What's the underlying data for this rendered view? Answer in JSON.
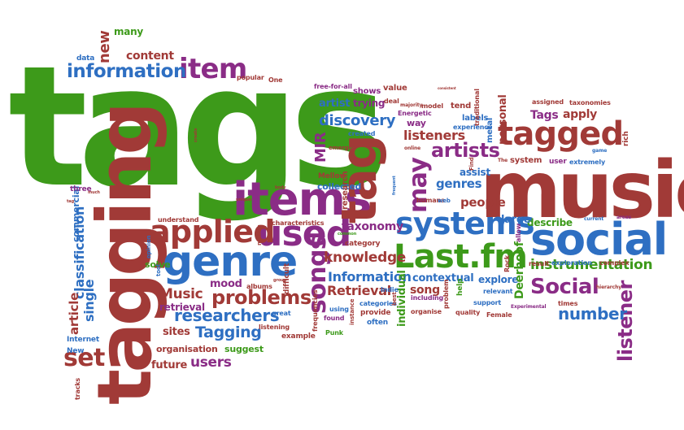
{
  "words": {
    "tags": "tags",
    "music": "music",
    "tagging": "tagging",
    "social": "social",
    "items": "items",
    "tag": "tag",
    "genre": "genre",
    "tagged": "tagged",
    "Lastfm": "Last.fm",
    "systems": "systems",
    "used": "used",
    "applied": "applied",
    "songs": "songs",
    "item": "item",
    "information": "information",
    "may": "may",
    "artists": "artists",
    "Social": "Social",
    "problems": "problems",
    "researchers": "researchers",
    "Tagging": "Tagging",
    "listener": "listener",
    "number": "number",
    "set": "set",
    "users": "users",
    "instrumentation": "instrumentation",
    "Music": "Music",
    "knowledge": "knowledge",
    "Information": "Information",
    "Retrieval": "Retrieval",
    "discovery": "discovery",
    "listeners": "listeners",
    "classification": "classification",
    "single": "single",
    "article": "article",
    "taxonomy": "taxonomy",
    "genres": "genres",
    "people": "people",
    "contextual": "contextual",
    "song": "song",
    "content": "content",
    "new": "new",
    "many": "many",
    "Tags": "Tags",
    "apply": "apply",
    "artist": "artist",
    "trying": "trying",
    "MIR": "MIR",
    "describe": "describe",
    "explore": "explore",
    "Deerhoof": "Deerhoof",
    "mood": "mood",
    "future": "future",
    "suggest": "suggest",
    "organisation": "organisation",
    "sites": "sites",
    "retrieval": "retrieval",
    "individual": "individual",
    "personal": "personal",
    "assist": "assist",
    "labels": "labels",
    "collected": "collected",
    "Mellow": "Mellow",
    "research": "research",
    "solve": "solve",
    "commercial": "commercial",
    "three": "three",
    "Internet": "Internet",
    "New": "New",
    "tracks": "tracks",
    "data": "data",
    "popular": "popular",
    "One": "One",
    "free_for_all": "free-for-all",
    "shows": "shows",
    "value": "value",
    "deal": "deal",
    "way": "way",
    "Energetic": "Energetic",
    "model": "model",
    "tend": "tend",
    "traditional": "traditional",
    "experience": "experience",
    "metal": "metal",
    "system": "system",
    "user": "user",
    "extremely": "extremely",
    "assigned": "assigned",
    "taxonomies": "taxonomies",
    "rich": "rich",
    "large": "large",
    "relevant": "relevant",
    "support": "support",
    "quality": "quality",
    "Female": "Female",
    "times": "times",
    "exploration": "exploration",
    "complex": "complex",
    "result": "result",
    "hierarchy": "hierarchy",
    "Rock": "Rock",
    "allow": "allow",
    "help": "help",
    "problem": "problem",
    "including": "including",
    "organise": "organise",
    "provide": "provide",
    "often": "often",
    "categories": "categories",
    "Indie": "Indie",
    "best": "best",
    "found": "found",
    "using": "using",
    "instance": "instance",
    "frequencies": "frequencies",
    "Punk": "Punk",
    "example": "example",
    "listening": "listening",
    "great": "great",
    "albums": "albums",
    "difficult": "difficult",
    "category": "category",
    "characteristics": "characteristics",
    "million": "million",
    "opinion": "opinion",
    "tool": "tool",
    "understand": "understand",
    "humans": "humans",
    "created": "created",
    "emerges": "emerges",
    "web": "web",
    "Experimental": "Experimental",
    "current": "current",
    "areas": "areas",
    "game": "game",
    "Find": "Find",
    "The": "The",
    "majority": "majority",
    "online": "online",
    "frequent": "frequent",
    "common": "common",
    "group": "group",
    "body": "body",
    "unique": "unique",
    "create": "create",
    "much": "much",
    "tag_small": "tag",
    "consistent": "consistent"
  }
}
